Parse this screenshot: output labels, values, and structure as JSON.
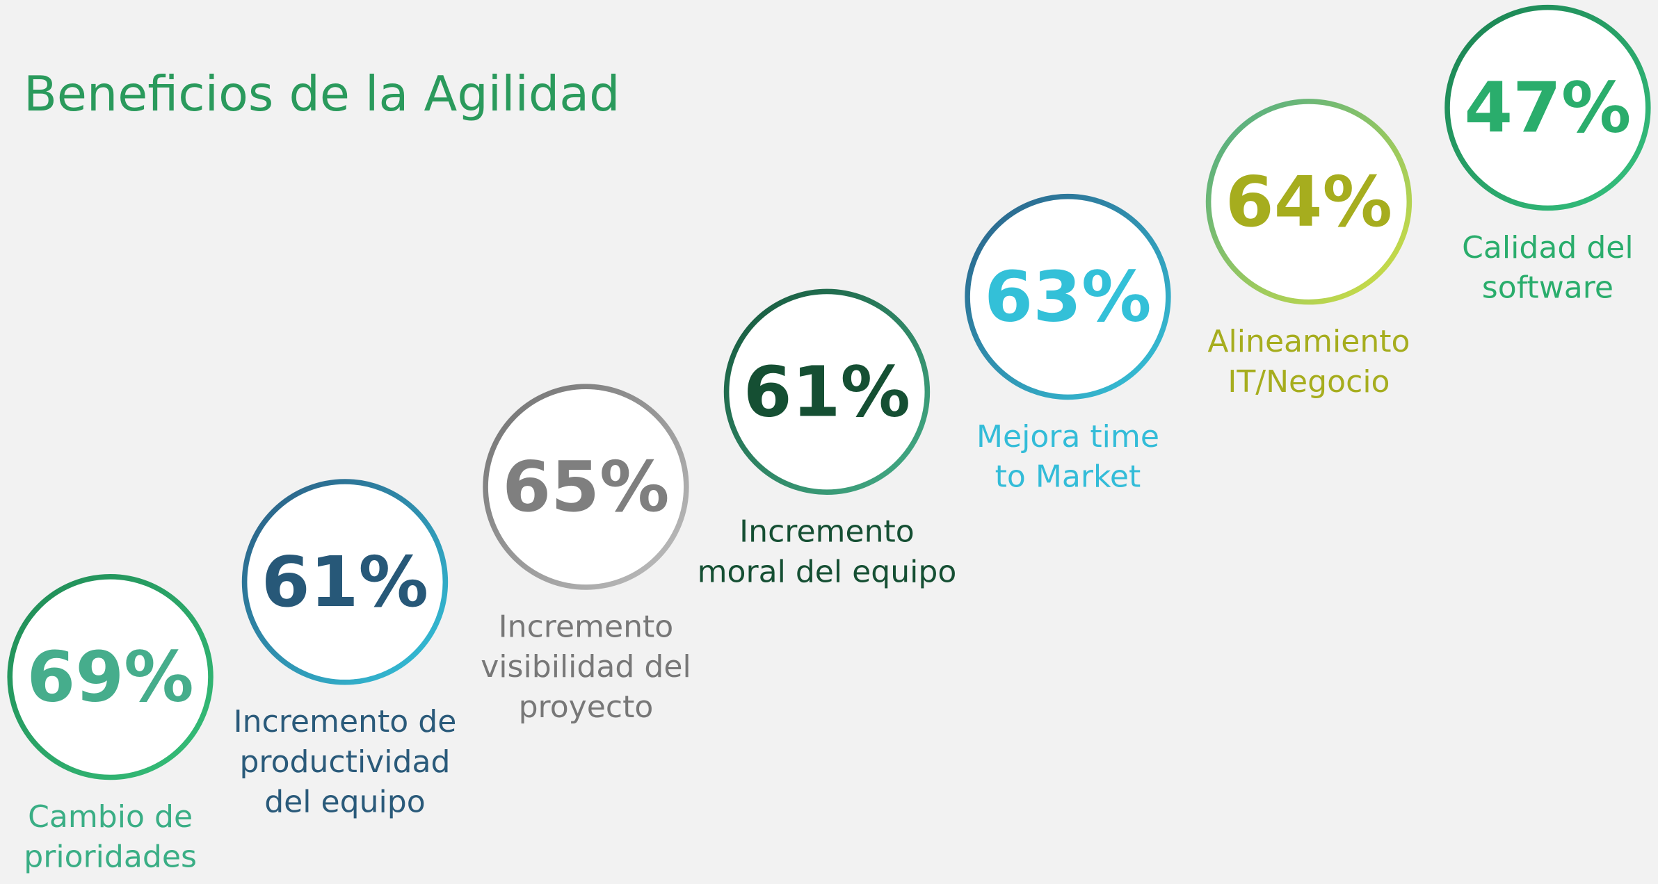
{
  "title": "Beneficios de la Agilidad",
  "items": [
    {
      "value": "69%",
      "label": [
        "Cambio de",
        "prioridades"
      ]
    },
    {
      "value": "61%",
      "label": [
        "Incremento de",
        "productividad",
        "del equipo"
      ]
    },
    {
      "value": "65%",
      "label": [
        "Incremento",
        "visibilidad del",
        "proyecto"
      ]
    },
    {
      "value": "61%",
      "label": [
        "Incremento",
        "moral del equipo"
      ]
    },
    {
      "value": "63%",
      "label": [
        "Mejora time",
        "to Market"
      ]
    },
    {
      "value": "64%",
      "label": [
        "Alineamiento",
        "IT/Negocio"
      ]
    },
    {
      "value": "47%",
      "label": [
        "Calidad del",
        "software"
      ]
    }
  ]
}
